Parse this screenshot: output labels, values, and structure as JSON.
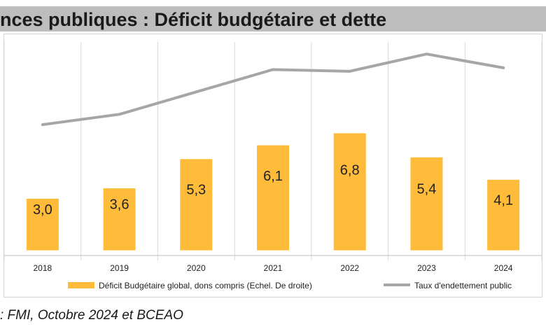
{
  "header": {
    "title": "nces publiques : Déficit budgétaire et dette"
  },
  "source_note": ": FMI, Octobre 2024 et BCEAO",
  "colors": {
    "bar": "#FFBC3B",
    "line": "#A6A6A6",
    "title_bg": "#BDBDBD"
  },
  "chart_data": {
    "type": "bar",
    "categories": [
      "2018",
      "2019",
      "2020",
      "2021",
      "2022",
      "2023",
      "2024"
    ],
    "series": [
      {
        "name": "Déficit Budgétaire global, dons compris (Echel. De droite)",
        "type": "bar",
        "values": [
          3.0,
          3.6,
          5.3,
          6.1,
          6.8,
          5.4,
          4.1
        ],
        "labels": [
          "3,0",
          "3,6",
          "5,3",
          "6,1",
          "6,8",
          "5,4",
          "4,1"
        ]
      },
      {
        "name": "Taux d'endettement public",
        "type": "line",
        "values": [
          7.3,
          7.9,
          9.2,
          10.5,
          10.4,
          11.4,
          10.6
        ]
      }
    ],
    "ylim": [
      -0.3,
      12.1
    ],
    "legend_position": "bottom",
    "grid": "vertical"
  }
}
